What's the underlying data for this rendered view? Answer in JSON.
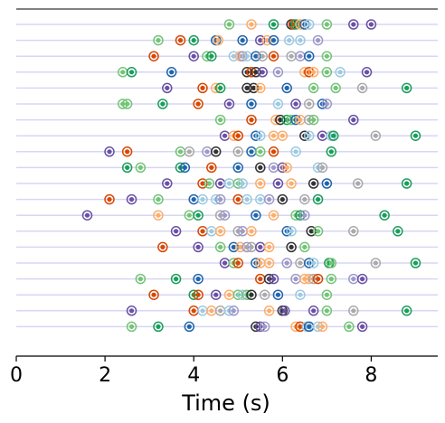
{
  "chart_data": {
    "type": "scatter",
    "xlabel": "Time (s)",
    "xlim": [
      0,
      9.5
    ],
    "xticks": [
      0,
      2,
      4,
      6,
      8
    ],
    "xtick_labels": [
      "0",
      "2",
      "4",
      "6",
      "8"
    ],
    "grid": "horizontal row lines",
    "legend": "none",
    "colors": {
      "green": "#1b9e5a",
      "lightgreen": "#74c476",
      "orange": "#d94801",
      "lightorange": "#fdae6b",
      "purple": "#6a51a3",
      "lightpurple": "#9e9ac8",
      "blue": "#2166ac",
      "lightblue": "#9ecae1",
      "gray": "#333333",
      "lightgray": "#aaaaaa"
    },
    "rows": [
      {
        "points": [
          [
            4.8,
            "lightgreen"
          ],
          [
            5.3,
            "lightorange"
          ],
          [
            5.8,
            "green"
          ],
          [
            6.2,
            "gray"
          ],
          [
            6.25,
            "orange"
          ],
          [
            6.3,
            "green"
          ],
          [
            6.4,
            "lightorange"
          ],
          [
            6.5,
            "blue"
          ],
          [
            6.6,
            "lightblue"
          ],
          [
            7.0,
            "lightgreen"
          ],
          [
            7.6,
            "purple"
          ],
          [
            8.0,
            "purple"
          ]
        ]
      },
      {
        "points": [
          [
            3.2,
            "lightgreen"
          ],
          [
            3.7,
            "orange"
          ],
          [
            4.0,
            "green"
          ],
          [
            4.5,
            "blue"
          ],
          [
            4.55,
            "lightorange"
          ],
          [
            5.1,
            "blue"
          ],
          [
            5.5,
            "purple"
          ],
          [
            5.65,
            "lightorange"
          ],
          [
            5.8,
            "blue"
          ],
          [
            6.15,
            "lightblue"
          ],
          [
            6.4,
            "lightblue"
          ],
          [
            6.8,
            "lightpurple"
          ]
        ]
      },
      {
        "points": [
          [
            3.1,
            "orange"
          ],
          [
            4.0,
            "purple"
          ],
          [
            4.3,
            "lightgreen"
          ],
          [
            4.4,
            "green"
          ],
          [
            4.9,
            "lightblue"
          ],
          [
            5.05,
            "lightorange"
          ],
          [
            5.1,
            "lightpurple"
          ],
          [
            5.2,
            "lightblue"
          ],
          [
            5.4,
            "blue"
          ],
          [
            5.55,
            "lightgray"
          ],
          [
            5.8,
            "orange"
          ],
          [
            6.2,
            "lightgray"
          ],
          [
            6.4,
            "lightpurple"
          ],
          [
            6.6,
            "blue"
          ],
          [
            7.0,
            "lightgreen"
          ]
        ]
      },
      {
        "points": [
          [
            2.4,
            "lightgreen"
          ],
          [
            2.6,
            "green"
          ],
          [
            3.5,
            "blue"
          ],
          [
            5.2,
            "gray"
          ],
          [
            5.3,
            "orange"
          ],
          [
            5.4,
            "gray"
          ],
          [
            5.55,
            "purple"
          ],
          [
            5.9,
            "lightpurple"
          ],
          [
            6.5,
            "lightorange"
          ],
          [
            6.6,
            "orange"
          ],
          [
            6.7,
            "lightorange"
          ],
          [
            7.0,
            "lightgreen"
          ],
          [
            7.3,
            "lightblue"
          ],
          [
            7.9,
            "purple"
          ]
        ]
      },
      {
        "points": [
          [
            3.4,
            "purple"
          ],
          [
            4.2,
            "orange"
          ],
          [
            4.5,
            "lightorange"
          ],
          [
            4.6,
            "green"
          ],
          [
            5.2,
            "gray"
          ],
          [
            5.35,
            "gray"
          ],
          [
            5.5,
            "lightorange"
          ],
          [
            6.1,
            "blue"
          ],
          [
            6.7,
            "lightgreen"
          ],
          [
            7.2,
            "lightgreen"
          ],
          [
            7.8,
            "lightgray"
          ],
          [
            8.8,
            "green"
          ]
        ]
      },
      {
        "points": [
          [
            2.4,
            "lightgreen"
          ],
          [
            2.5,
            "lightgreen"
          ],
          [
            3.3,
            "green"
          ],
          [
            4.1,
            "orange"
          ],
          [
            4.8,
            "purple"
          ],
          [
            5.3,
            "blue"
          ],
          [
            5.9,
            "lightblue"
          ],
          [
            6.3,
            "purple"
          ],
          [
            6.6,
            "lightgray"
          ],
          [
            6.9,
            "blue"
          ],
          [
            7.0,
            "lightpurple"
          ]
        ]
      },
      {
        "points": [
          [
            4.6,
            "lightgreen"
          ],
          [
            5.3,
            "orange"
          ],
          [
            5.85,
            "lightorange"
          ],
          [
            5.95,
            "gray"
          ],
          [
            6.1,
            "green"
          ],
          [
            6.2,
            "lightgreen"
          ],
          [
            6.3,
            "blue"
          ],
          [
            6.4,
            "lightorange"
          ],
          [
            6.6,
            "lightgray"
          ],
          [
            6.7,
            "lightgreen"
          ],
          [
            7.6,
            "purple"
          ]
        ]
      },
      {
        "points": [
          [
            4.7,
            "purple"
          ],
          [
            4.9,
            "lightorange"
          ],
          [
            5.0,
            "orange"
          ],
          [
            5.4,
            "blue"
          ],
          [
            5.5,
            "lightblue"
          ],
          [
            5.8,
            "lightorange"
          ],
          [
            6.0,
            "lightorange"
          ],
          [
            6.5,
            "gray"
          ],
          [
            6.6,
            "lightblue"
          ],
          [
            6.9,
            "purple"
          ],
          [
            7.1,
            "lightblue"
          ],
          [
            7.15,
            "green"
          ],
          [
            8.1,
            "lightgray"
          ],
          [
            9.0,
            "green"
          ]
        ]
      },
      {
        "points": [
          [
            2.1,
            "purple"
          ],
          [
            2.5,
            "orange"
          ],
          [
            3.7,
            "lightgreen"
          ],
          [
            3.9,
            "lightgray"
          ],
          [
            4.3,
            "lightpurple"
          ],
          [
            4.5,
            "gray"
          ],
          [
            5.0,
            "lightgray"
          ],
          [
            5.3,
            "blue"
          ],
          [
            5.5,
            "lightgreen"
          ],
          [
            5.8,
            "orange"
          ],
          [
            6.3,
            "lightblue"
          ],
          [
            7.1,
            "green"
          ]
        ]
      },
      {
        "points": [
          [
            2.5,
            "green"
          ],
          [
            2.8,
            "lightgreen"
          ],
          [
            3.7,
            "green"
          ],
          [
            3.8,
            "blue"
          ],
          [
            4.4,
            "orange"
          ],
          [
            5.0,
            "blue"
          ],
          [
            5.5,
            "gray"
          ],
          [
            5.8,
            "lightpurple"
          ],
          [
            6.0,
            "purple"
          ],
          [
            6.1,
            "lightorange"
          ],
          [
            6.8,
            "lightblue"
          ],
          [
            6.9,
            "lightgray"
          ]
        ]
      },
      {
        "points": [
          [
            3.4,
            "purple"
          ],
          [
            4.2,
            "orange"
          ],
          [
            4.35,
            "lightgreen"
          ],
          [
            4.6,
            "purple"
          ],
          [
            4.8,
            "lightblue"
          ],
          [
            5.0,
            "lightgreen"
          ],
          [
            5.1,
            "lightblue"
          ],
          [
            5.5,
            "lightorange"
          ],
          [
            5.9,
            "purple"
          ],
          [
            6.2,
            "lightorange"
          ],
          [
            6.7,
            "gray"
          ],
          [
            7.0,
            "blue"
          ],
          [
            7.7,
            "lightgray"
          ],
          [
            8.8,
            "green"
          ]
        ]
      },
      {
        "points": [
          [
            2.1,
            "orange"
          ],
          [
            2.6,
            "purple"
          ],
          [
            3.2,
            "lightgreen"
          ],
          [
            4.0,
            "blue"
          ],
          [
            4.2,
            "lightblue"
          ],
          [
            4.5,
            "lightblue"
          ],
          [
            4.6,
            "lightpurple"
          ],
          [
            5.0,
            "orange"
          ],
          [
            5.2,
            "lightblue"
          ],
          [
            5.5,
            "lightblue"
          ],
          [
            5.7,
            "lightpurple"
          ],
          [
            6.0,
            "gray"
          ],
          [
            6.5,
            "lightgray"
          ],
          [
            6.8,
            "green"
          ]
        ]
      },
      {
        "points": [
          [
            1.6,
            "purple"
          ],
          [
            3.2,
            "lightorange"
          ],
          [
            3.9,
            "lightgreen"
          ],
          [
            4.1,
            "green"
          ],
          [
            4.6,
            "lightgray"
          ],
          [
            4.7,
            "lightpurple"
          ],
          [
            5.4,
            "blue"
          ],
          [
            5.8,
            "lightorange"
          ],
          [
            6.3,
            "lightgreen"
          ],
          [
            6.4,
            "green"
          ],
          [
            6.5,
            "lightpurple"
          ],
          [
            8.3,
            "green"
          ]
        ]
      },
      {
        "points": [
          [
            3.6,
            "purple"
          ],
          [
            4.2,
            "orange"
          ],
          [
            4.4,
            "lightblue"
          ],
          [
            4.6,
            "lightorange"
          ],
          [
            5.0,
            "lightgray"
          ],
          [
            5.1,
            "lightpurple"
          ],
          [
            5.3,
            "lightorange"
          ],
          [
            6.1,
            "blue"
          ],
          [
            6.2,
            "lightblue"
          ],
          [
            6.65,
            "gray"
          ],
          [
            6.8,
            "lightgreen"
          ],
          [
            7.6,
            "lightgray"
          ],
          [
            8.6,
            "green"
          ]
        ]
      },
      {
        "points": [
          [
            3.3,
            "orange"
          ],
          [
            4.1,
            "purple"
          ],
          [
            4.6,
            "lightgreen"
          ],
          [
            4.9,
            "blue"
          ],
          [
            5.05,
            "lightorange"
          ],
          [
            5.2,
            "lightpurple"
          ],
          [
            5.3,
            "lightgray"
          ],
          [
            5.5,
            "purple"
          ],
          [
            5.7,
            "lightorange"
          ],
          [
            6.2,
            "gray"
          ],
          [
            6.5,
            "lightgreen"
          ]
        ]
      },
      {
        "points": [
          [
            4.7,
            "purple"
          ],
          [
            4.9,
            "lightgreen"
          ],
          [
            5.0,
            "orange"
          ],
          [
            5.4,
            "blue"
          ],
          [
            5.5,
            "lightorange"
          ],
          [
            5.7,
            "lightorange"
          ],
          [
            6.1,
            "lightpurple"
          ],
          [
            6.4,
            "lightgray"
          ],
          [
            6.6,
            "blue"
          ],
          [
            6.7,
            "lightblue"
          ],
          [
            7.05,
            "green"
          ],
          [
            7.1,
            "lightgreen"
          ],
          [
            8.1,
            "lightgray"
          ],
          [
            9.0,
            "green"
          ]
        ]
      },
      {
        "points": [
          [
            2.8,
            "lightgreen"
          ],
          [
            3.6,
            "green"
          ],
          [
            4.1,
            "blue"
          ],
          [
            5.5,
            "orange"
          ],
          [
            5.7,
            "gray"
          ],
          [
            5.8,
            "purple"
          ],
          [
            6.3,
            "lightpurple"
          ],
          [
            6.5,
            "lightorange"
          ],
          [
            6.6,
            "lightorange"
          ],
          [
            6.7,
            "lightgray"
          ],
          [
            6.8,
            "orange"
          ],
          [
            7.1,
            "lightgreen"
          ],
          [
            7.6,
            "lightpurple"
          ],
          [
            7.8,
            "purple"
          ]
        ]
      },
      {
        "points": [
          [
            3.1,
            "orange"
          ],
          [
            4.0,
            "green"
          ],
          [
            4.1,
            "orange"
          ],
          [
            4.5,
            "purple"
          ],
          [
            4.8,
            "lightorange"
          ],
          [
            5.0,
            "lightgreen"
          ],
          [
            5.1,
            "lightblue"
          ],
          [
            5.2,
            "lightgreen"
          ],
          [
            5.3,
            "gray"
          ],
          [
            5.6,
            "lightgray"
          ],
          [
            5.9,
            "blue"
          ],
          [
            6.4,
            "lightblue"
          ],
          [
            7.0,
            "lightgreen"
          ]
        ]
      },
      {
        "points": [
          [
            2.6,
            "purple"
          ],
          [
            4.0,
            "orange"
          ],
          [
            4.2,
            "lightblue"
          ],
          [
            4.4,
            "lightorange"
          ],
          [
            4.6,
            "lightgray"
          ],
          [
            4.8,
            "lightblue"
          ],
          [
            4.9,
            "lightpurple"
          ],
          [
            5.7,
            "lightorange"
          ],
          [
            6.0,
            "gray"
          ],
          [
            6.05,
            "purple"
          ],
          [
            6.7,
            "purple"
          ],
          [
            7.0,
            "lightgreen"
          ],
          [
            7.6,
            "lightgray"
          ],
          [
            8.8,
            "green"
          ]
        ]
      },
      {
        "points": [
          [
            2.6,
            "lightgreen"
          ],
          [
            3.2,
            "green"
          ],
          [
            3.9,
            "blue"
          ],
          [
            5.4,
            "gray"
          ],
          [
            5.5,
            "purple"
          ],
          [
            5.6,
            "lightpurple"
          ],
          [
            6.3,
            "lightorange"
          ],
          [
            6.4,
            "orange"
          ],
          [
            6.55,
            "lightblue"
          ],
          [
            6.6,
            "blue"
          ],
          [
            6.8,
            "lightblue"
          ],
          [
            6.9,
            "lightorange"
          ],
          [
            7.5,
            "lightgreen"
          ],
          [
            7.8,
            "purple"
          ]
        ]
      }
    ]
  }
}
